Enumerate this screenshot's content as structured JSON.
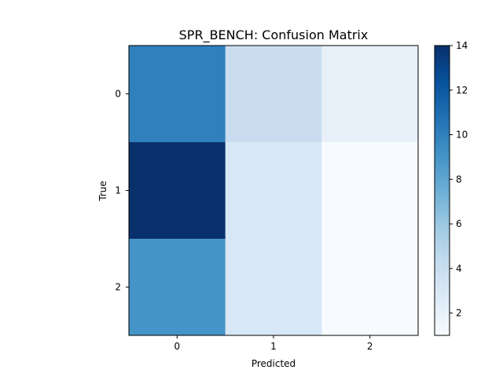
{
  "chart_data": {
    "type": "heatmap",
    "title": "SPR_BENCH: Confusion Matrix",
    "xlabel": "Predicted",
    "ylabel": "True",
    "x_categories": [
      "0",
      "1",
      "2"
    ],
    "y_categories": [
      "0",
      "1",
      "2"
    ],
    "values": [
      [
        10,
        4,
        2
      ],
      [
        14,
        3,
        1
      ],
      [
        9,
        3,
        1
      ]
    ],
    "colormap": "Blues",
    "color_range": [
      1,
      14
    ],
    "colorbar_ticks": [
      "2",
      "4",
      "6",
      "8",
      "10",
      "12",
      "14"
    ],
    "grid": false
  }
}
